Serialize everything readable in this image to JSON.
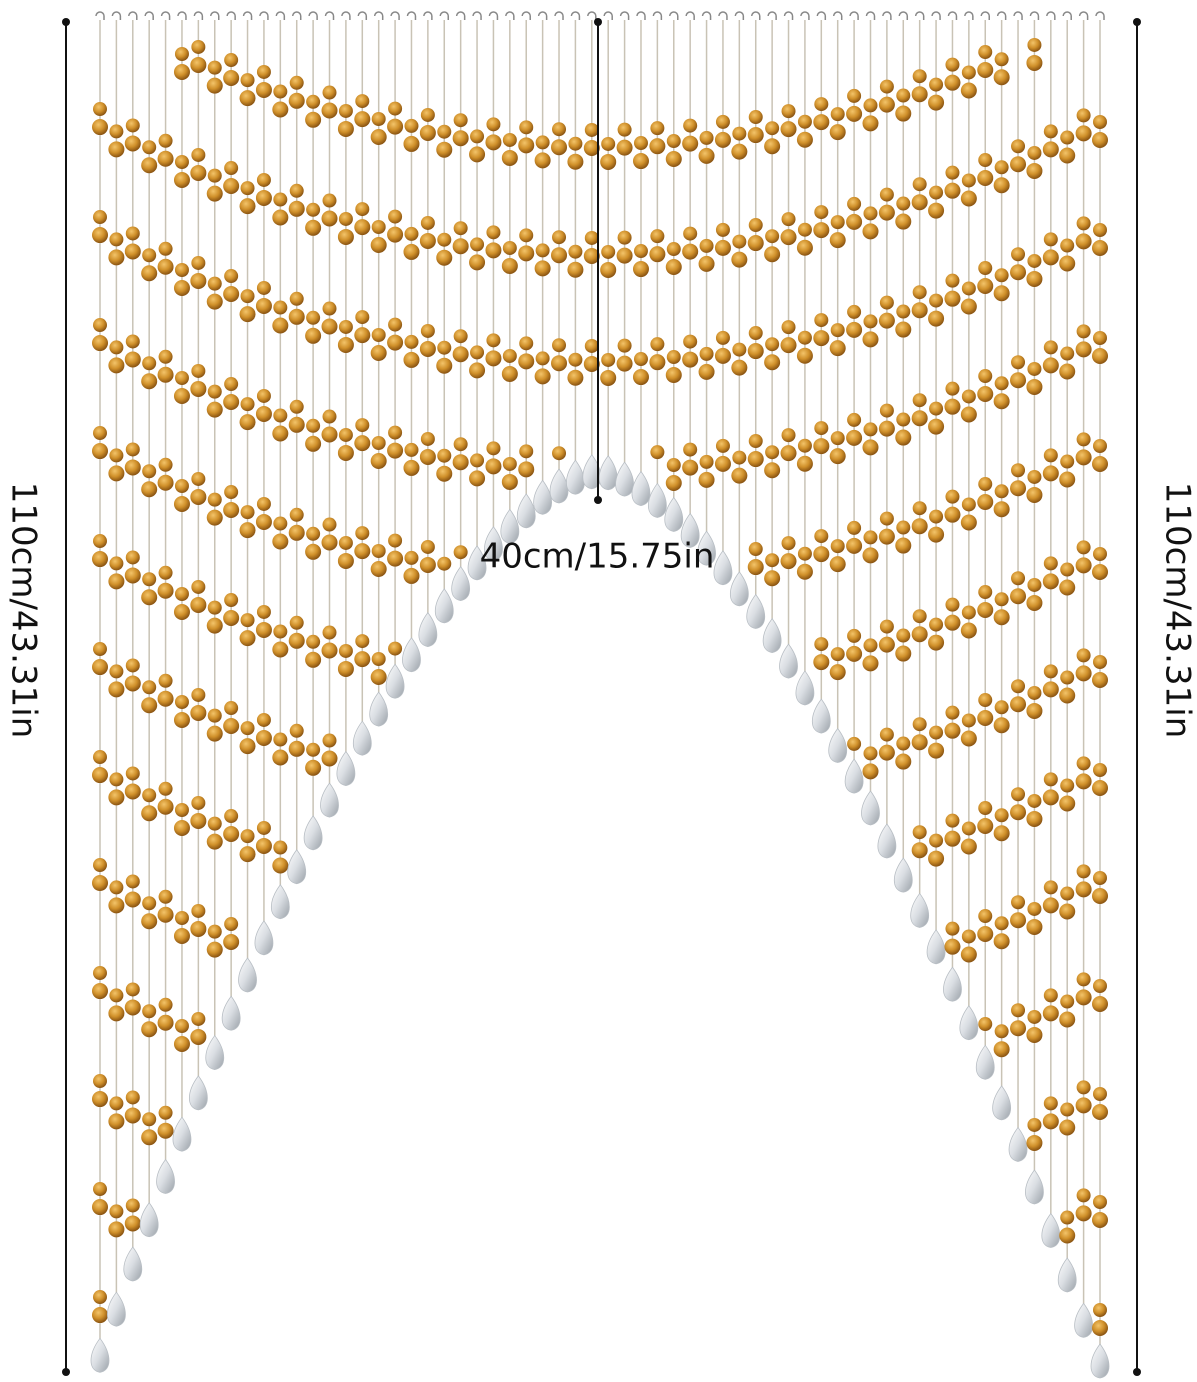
{
  "dimensions": {
    "left_height": "110cm/43.31in",
    "right_height": "110cm/43.31in",
    "center_length": "40cm/15.75in"
  }
}
